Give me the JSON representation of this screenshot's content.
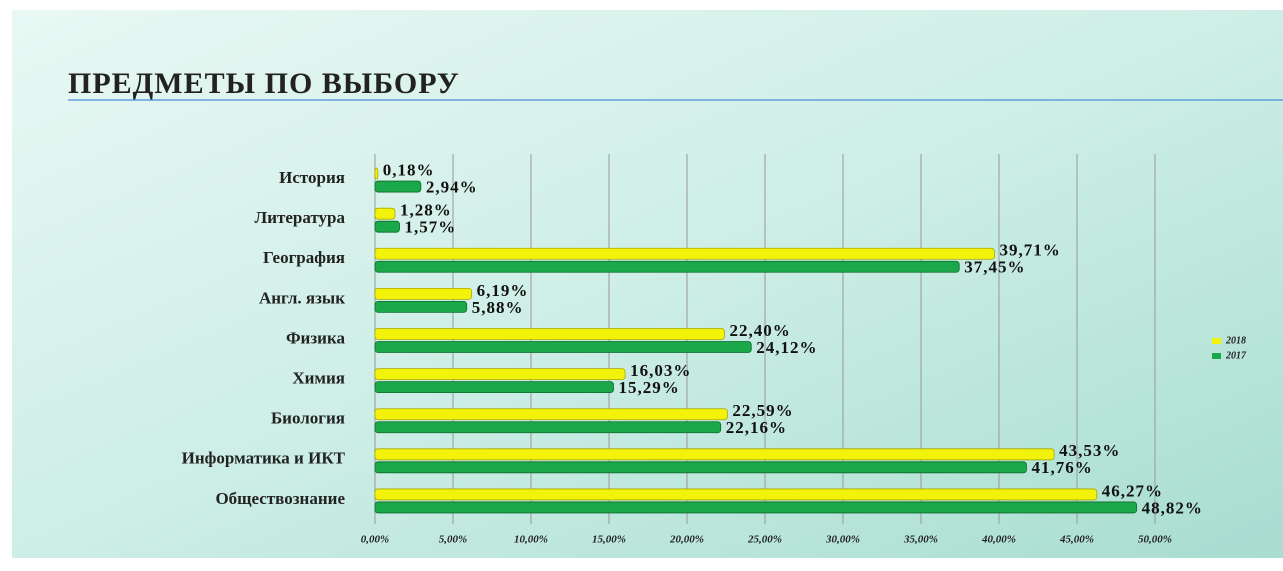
{
  "chart_data": {
    "type": "barh",
    "title": "ПРЕДМЕТЫ ПО ВЫБОРУ",
    "categories": [
      "История",
      "Литература",
      "География",
      "Англ. язык",
      "Физика",
      "Химия",
      "Биология",
      "Информатика и ИКТ",
      "Обществознание"
    ],
    "series": [
      {
        "name": "2018",
        "color": "#f2f20a",
        "values": [
          0.18,
          1.28,
          39.71,
          6.19,
          22.4,
          16.03,
          22.59,
          43.53,
          46.27
        ],
        "value_labels": [
          "0,18%",
          "1,28%",
          "39,71%",
          "6,19%",
          "22,40%",
          "16,03%",
          "22,59%",
          "43,53%",
          "46,27%"
        ]
      },
      {
        "name": "2017",
        "color": "#1aa84a",
        "values": [
          2.94,
          1.57,
          37.45,
          5.88,
          24.12,
          15.29,
          22.16,
          41.76,
          48.82
        ],
        "value_labels": [
          "2,94%",
          "1,57%",
          "37,45%",
          "5,88%",
          "24,12%",
          "15,29%",
          "22,16%",
          "41,76%",
          "48,82%"
        ]
      }
    ],
    "xlim": [
      0,
      50
    ],
    "xticks": [
      {
        "value": 0,
        "label": "0,00%"
      },
      {
        "value": 5,
        "label": "5,00%"
      },
      {
        "value": 10,
        "label": "10,00%"
      },
      {
        "value": 15,
        "label": "15,00%"
      },
      {
        "value": 20,
        "label": "20,00%"
      },
      {
        "value": 25,
        "label": "25,00%"
      },
      {
        "value": 30,
        "label": "30,00%"
      },
      {
        "value": 35,
        "label": "35,00%"
      },
      {
        "value": 40,
        "label": "40,00%"
      },
      {
        "value": 45,
        "label": "45,00%"
      },
      {
        "value": 50,
        "label": "50,00%"
      }
    ],
    "grid": true,
    "legend": "right"
  }
}
